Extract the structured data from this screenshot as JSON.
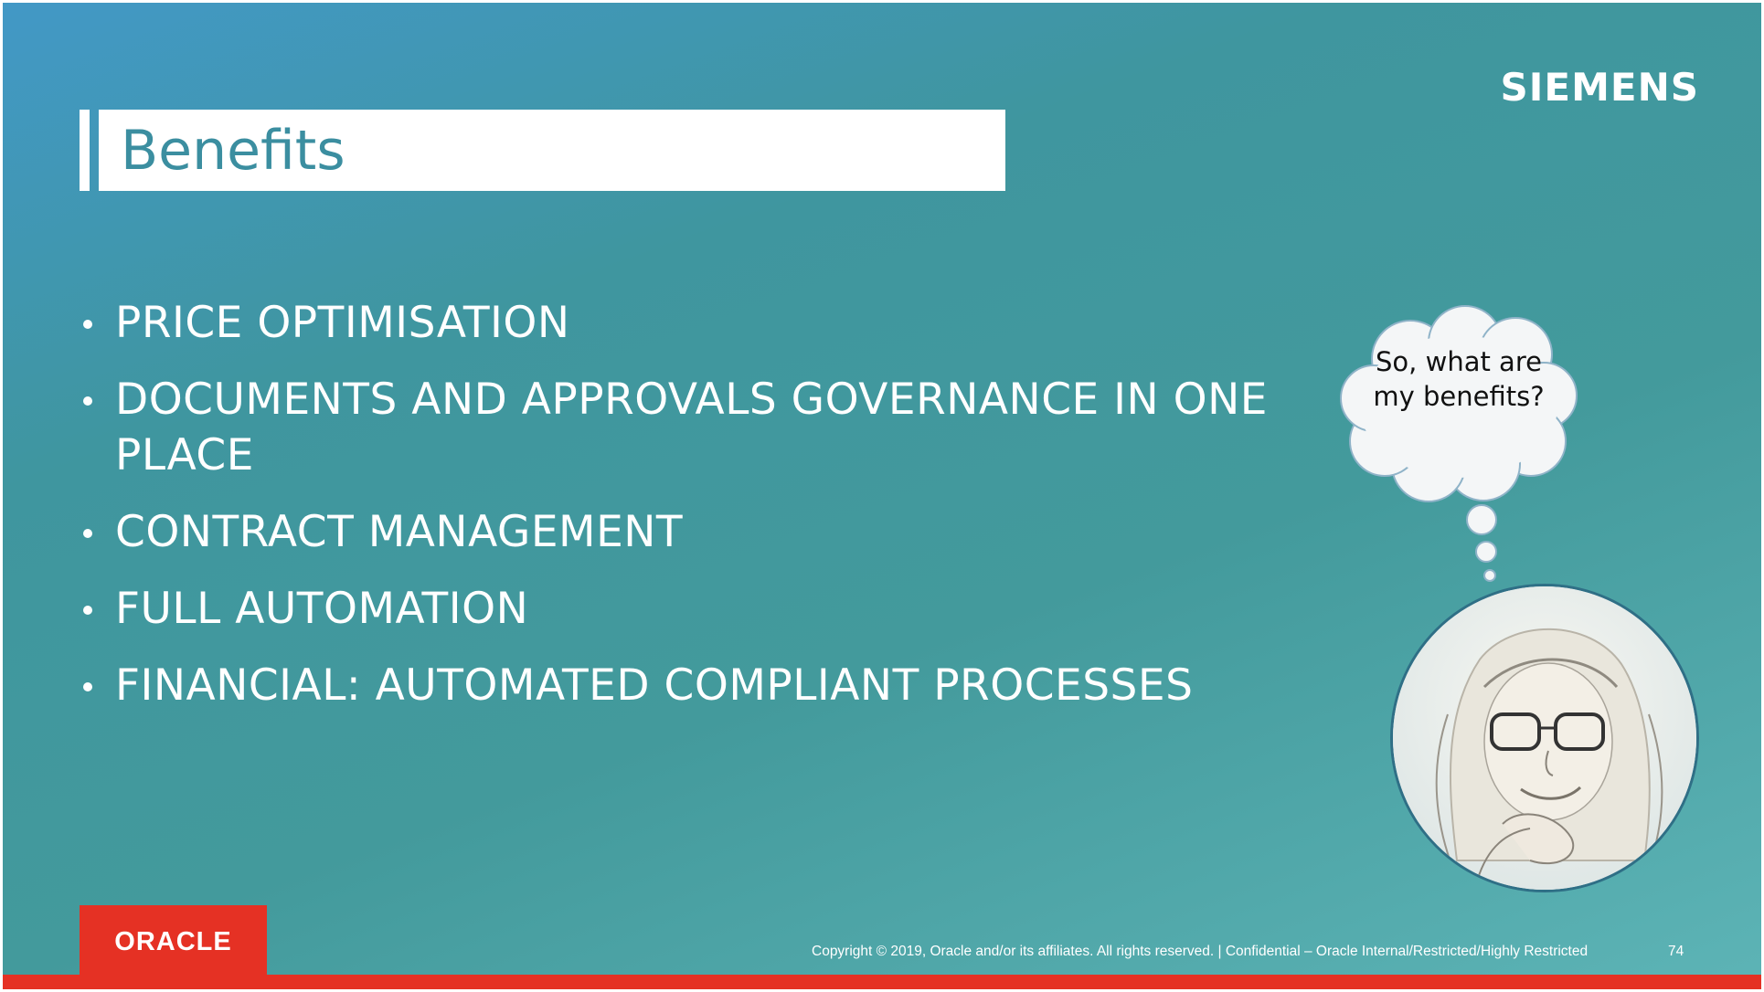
{
  "brand": {
    "logo_text": "SIEMENS"
  },
  "title": "Benefits",
  "bullets": [
    "PRICE OPTIMISATION",
    "DOCUMENTS AND APPROVALS GOVERNANCE IN ONE PLACE",
    "CONTRACT MANAGEMENT",
    "FULL AUTOMATION",
    "FINANCIAL: AUTOMATED COMPLIANT PROCESSES"
  ],
  "thought_bubble": {
    "text": "So, what are my benefits?"
  },
  "footer": {
    "oracle_logo": "ORACLE",
    "copyright": "Copyright © 2019, Oracle and/or its affiliates. All rights reserved.  |  Confidential – Oracle Internal/Restricted/Highly Restricted",
    "page_number": "74"
  },
  "colors": {
    "background_start": "#4298c6",
    "background_end": "#5db4b6",
    "title_text": "#3b8ea0",
    "oracle_red": "#e53124"
  }
}
